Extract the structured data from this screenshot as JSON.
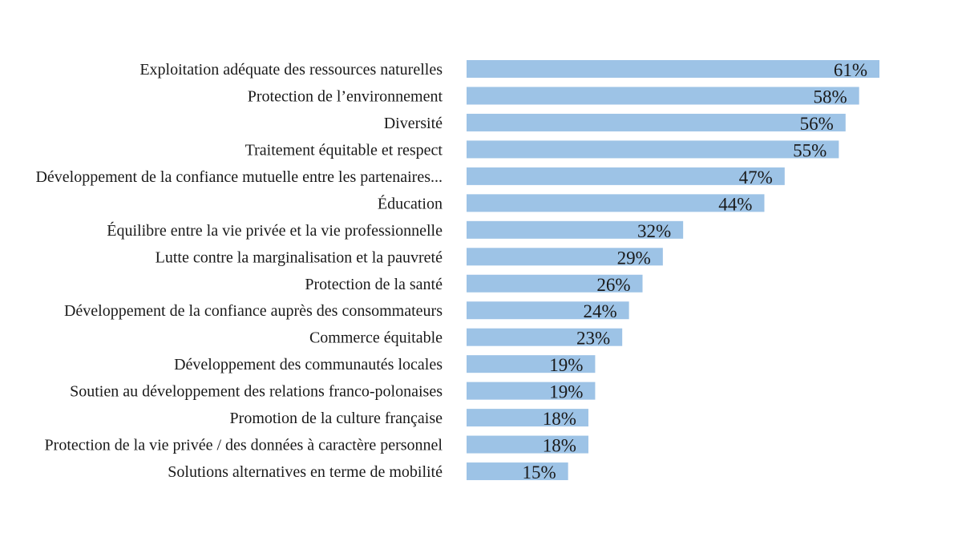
{
  "chart_data": {
    "type": "bar",
    "orientation": "horizontal",
    "title": "",
    "xlabel": "",
    "ylabel": "",
    "xlim": [
      0,
      61
    ],
    "grid": false,
    "legend": "none",
    "bar_color": "#9dc3e6",
    "value_suffix": "%",
    "categories": [
      "Exploitation adéquate des ressources naturelles",
      "Protection de l’environnement",
      "Diversité",
      "Traitement équitable et respect",
      "Développement de la confiance mutuelle entre les partenaires...",
      "Éducation",
      "Équilibre entre la vie privée et la vie professionnelle",
      "Lutte contre la marginalisation et la pauvreté",
      "Protection de la santé",
      "Développement de la confiance auprès des consommateurs",
      "Commerce équitable",
      "Développement des communautés locales",
      "Soutien au développement des relations franco-polonaises",
      "Promotion de la culture française",
      "Protection de la vie privée / des données à caractère personnel",
      "Solutions alternatives en terme de mobilité"
    ],
    "values": [
      61,
      58,
      56,
      55,
      47,
      44,
      32,
      29,
      26,
      24,
      23,
      19,
      19,
      18,
      18,
      15
    ],
    "data_labels": [
      "61%",
      "58%",
      "56%",
      "55%",
      "47%",
      "44%",
      "32%",
      "29%",
      "26%",
      "24%",
      "23%",
      "19%",
      "19%",
      "18%",
      "18%",
      "15%"
    ]
  }
}
